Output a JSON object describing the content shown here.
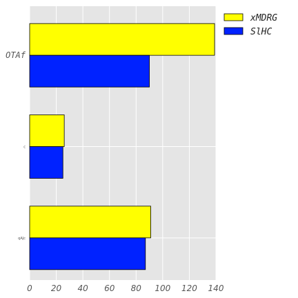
{
  "chart_data": {
    "type": "bar",
    "orientation": "horizontal",
    "categories": [
      "OTAf",
      "c",
      "qAJc"
    ],
    "series": [
      {
        "name": "xMDRG",
        "values": [
          139,
          26,
          91
        ],
        "color": "#ffff00"
      },
      {
        "name": "SlHC",
        "values": [
          90,
          25,
          87
        ],
        "color": "#0022ff"
      }
    ],
    "xlim": [
      0,
      140
    ],
    "xticks": [
      "0",
      "20",
      "40",
      "60",
      "80",
      "100",
      "120",
      "140"
    ],
    "grid": true,
    "legend": "top-right",
    "title": "",
    "xlabel": "",
    "ylabel": ""
  }
}
